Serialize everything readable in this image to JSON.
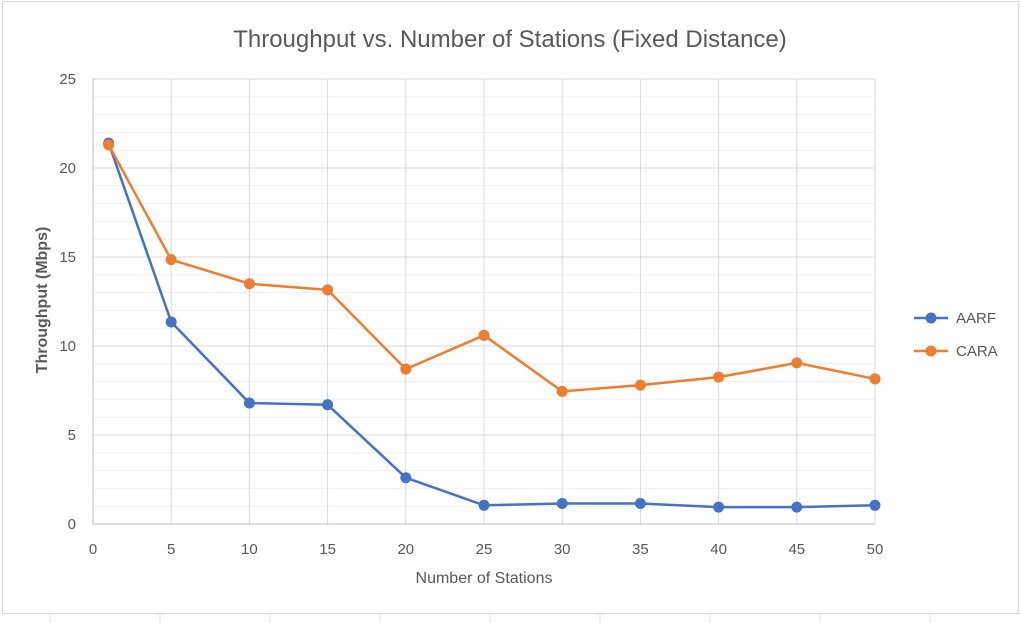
{
  "chart_data": {
    "type": "line",
    "title": "Throughput vs. Number of Stations (Fixed Distance)",
    "xlabel": "Number of Stations",
    "ylabel": "Throughput (Mbps)",
    "xlim": [
      0,
      50
    ],
    "ylim": [
      0,
      25
    ],
    "x_ticks": [
      0,
      5,
      10,
      15,
      20,
      25,
      30,
      35,
      40,
      45,
      50
    ],
    "x_tick_labels": [
      "0",
      "5",
      "10",
      "15",
      "20",
      "25",
      "30",
      "35",
      "40",
      "45",
      "50"
    ],
    "y_ticks": [
      0,
      5,
      10,
      15,
      20,
      25
    ],
    "y_tick_labels": [
      "0",
      "5",
      "10",
      "15",
      "20",
      "25"
    ],
    "grid": true,
    "legend_position": "right",
    "x": [
      1,
      5,
      10,
      15,
      20,
      25,
      30,
      35,
      40,
      45,
      50
    ],
    "series": [
      {
        "name": "AARF",
        "color": "#4472c4",
        "values": [
          21.4,
          11.35,
          6.8,
          6.7,
          2.6,
          1.05,
          1.15,
          1.15,
          0.95,
          0.95,
          1.05
        ]
      },
      {
        "name": "CARA",
        "color": "#ed7d31",
        "values": [
          21.3,
          14.85,
          13.5,
          13.15,
          8.7,
          10.6,
          7.45,
          7.8,
          8.25,
          9.05,
          8.15
        ]
      }
    ]
  }
}
